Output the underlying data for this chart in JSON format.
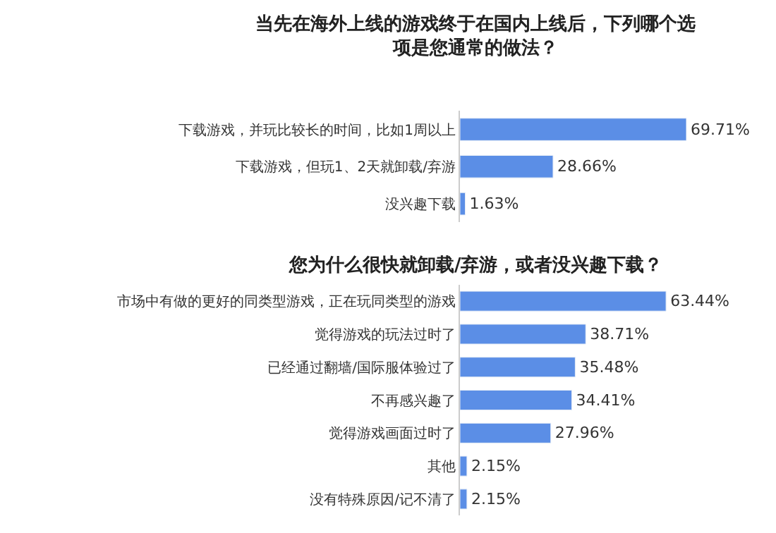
{
  "chart_data": [
    {
      "type": "bar",
      "orientation": "horizontal",
      "title": "当先在海外上线的游戏终于在国内上线后，下列哪个选项是您通常的做法？",
      "categories": [
        "下载游戏，并玩比较长的时间，比如1周以上",
        "下载游戏，但玩1、2天就卸载/弃游",
        "没兴趣下载"
      ],
      "values": [
        69.71,
        28.66,
        1.63
      ],
      "value_labels": [
        "69.71%",
        "28.66%",
        "1.63%"
      ],
      "color": "#5b8ee6"
    },
    {
      "type": "bar",
      "orientation": "horizontal",
      "title": "您为什么很快就卸载/弃游，或者没兴趣下载？",
      "categories": [
        "市场中有做的更好的同类型游戏，正在玩同类型的游戏",
        "觉得游戏的玩法过时了",
        "已经通过翻墙/国际服体验过了",
        "不再感兴趣了",
        "觉得游戏画面过时了",
        "其他",
        "没有特殊原因/记不清了"
      ],
      "values": [
        63.44,
        38.71,
        35.48,
        34.41,
        27.96,
        2.15,
        2.15
      ],
      "value_labels": [
        "63.44%",
        "38.71%",
        "35.48%",
        "34.41%",
        "27.96%",
        "2.15%",
        "2.15%"
      ],
      "color": "#5b8ee6"
    }
  ]
}
